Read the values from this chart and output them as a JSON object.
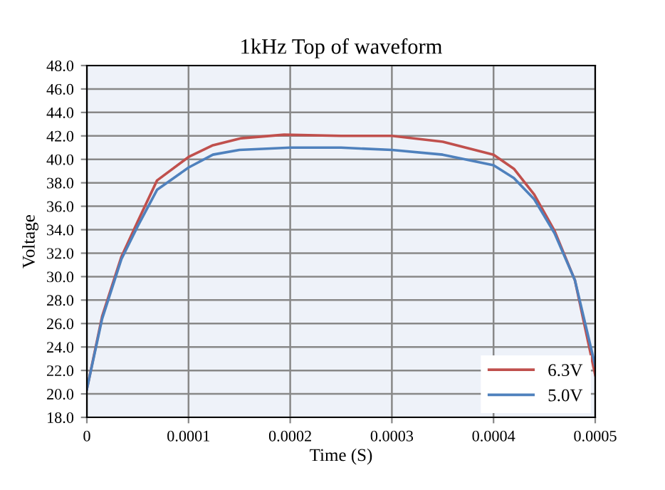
{
  "chart_data": {
    "type": "line",
    "title": "1kHz Top of waveform",
    "xlabel": "Time (S)",
    "ylabel": "Voltage",
    "xlim": [
      0,
      0.0005
    ],
    "ylim": [
      18,
      48
    ],
    "xticks": [
      0,
      0.0001,
      0.0002,
      0.0003,
      0.0004,
      0.0005
    ],
    "yticks": [
      {
        "value": 18,
        "label": "18.0"
      },
      {
        "value": 20,
        "label": "20.0"
      },
      {
        "value": 22,
        "label": "22.0"
      },
      {
        "value": 24,
        "label": "24.0"
      },
      {
        "value": 26,
        "label": "26.0"
      },
      {
        "value": 28,
        "label": "28.0"
      },
      {
        "value": 30,
        "label": "30.0"
      },
      {
        "value": 32,
        "label": "32.0"
      },
      {
        "value": 34,
        "label": "34.0"
      },
      {
        "value": 36,
        "label": "36.0"
      },
      {
        "value": 38,
        "label": "38.0"
      },
      {
        "value": 40,
        "label": "40.0"
      },
      {
        "value": 42,
        "label": "42.0"
      },
      {
        "value": 44,
        "label": "44.0"
      },
      {
        "value": 46,
        "label": "46.0"
      },
      {
        "value": 48,
        "label": "48.0"
      }
    ],
    "grid": true,
    "legend": "bottom right",
    "marker": "none",
    "line_style": "solid",
    "series": [
      {
        "name": "6.3V",
        "color": "#c0504d",
        "x": [
          0,
          1.5e-05,
          3.4e-05,
          5e-05,
          6.9e-05,
          0.0001,
          0.000124,
          0.000152,
          0.000194,
          0.00025,
          0.0003,
          0.00035,
          0.0004,
          0.00042,
          0.00044,
          0.00046,
          0.00048,
          0.0005
        ],
        "values": [
          20.4,
          26.6,
          31.7,
          34.7,
          38.2,
          40.2,
          41.2,
          41.8,
          42.1,
          42.0,
          42.0,
          41.5,
          40.4,
          39.2,
          37.0,
          33.9,
          29.7,
          21.6
        ]
      },
      {
        "name": "5.0V",
        "color": "#4f81bd",
        "x": [
          0,
          1.5e-05,
          3.4e-05,
          5e-05,
          6.9e-05,
          0.0001,
          0.000124,
          0.00015,
          0.0002,
          0.00025,
          0.0003,
          0.00035,
          0.0004,
          0.00042,
          0.00044,
          0.00046,
          0.00048,
          0.0005
        ],
        "values": [
          20.4,
          26.4,
          31.5,
          34.3,
          37.4,
          39.3,
          40.4,
          40.8,
          41.0,
          41.0,
          40.8,
          40.4,
          39.5,
          38.4,
          36.6,
          33.7,
          29.7,
          22.4
        ]
      }
    ]
  }
}
